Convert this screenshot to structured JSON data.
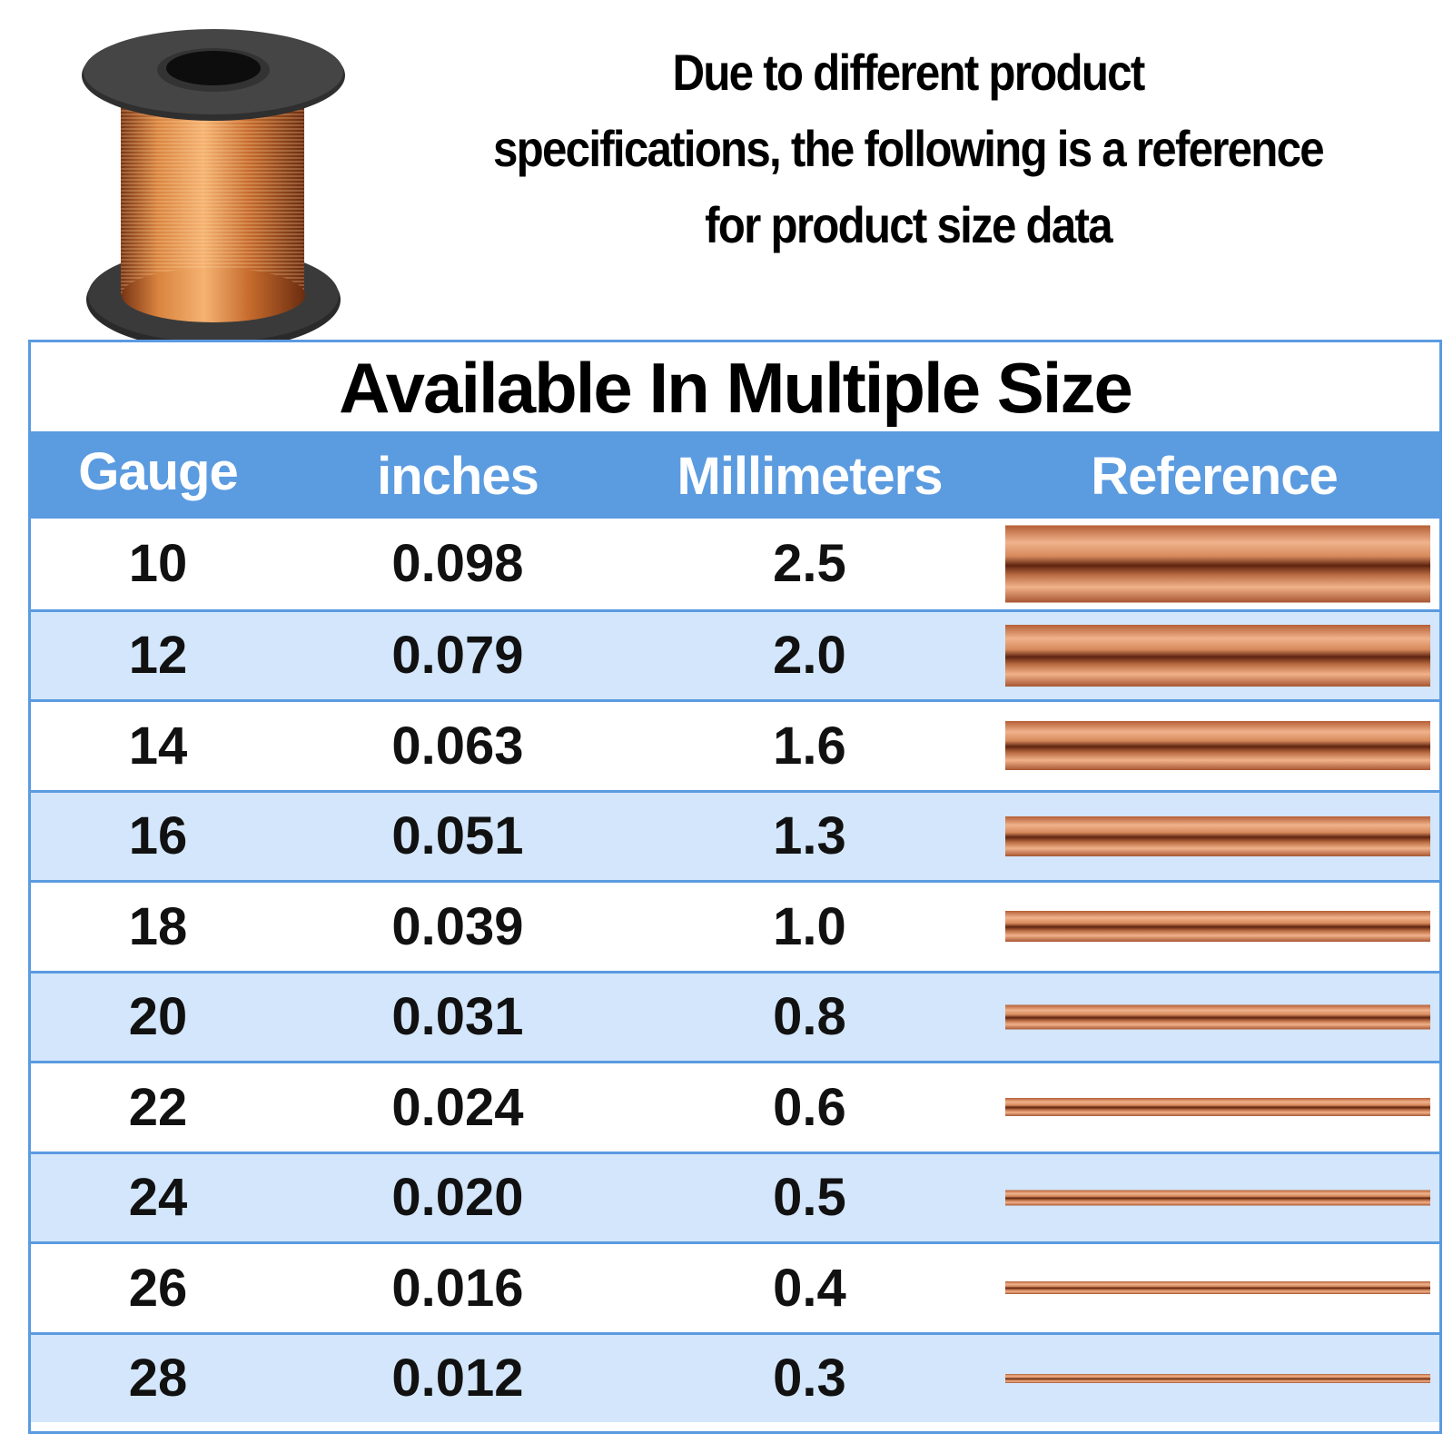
{
  "notice": {
    "line1": "Due to different product",
    "line2": "specifications, the following is a reference",
    "line3": "for product size data"
  },
  "table": {
    "title": "Available In Multiple Size",
    "headers": {
      "gauge": "Gauge",
      "inches": "inches",
      "millimeters": "Millimeters",
      "reference": "Reference"
    },
    "rows": [
      {
        "gauge": "10",
        "inches": "0.098",
        "mm": "2.5"
      },
      {
        "gauge": "12",
        "inches": "0.079",
        "mm": "2.0"
      },
      {
        "gauge": "14",
        "inches": "0.063",
        "mm": "1.6"
      },
      {
        "gauge": "16",
        "inches": "0.051",
        "mm": "1.3"
      },
      {
        "gauge": "18",
        "inches": "0.039",
        "mm": "1.0"
      },
      {
        "gauge": "20",
        "inches": "0.031",
        "mm": "0.8"
      },
      {
        "gauge": "22",
        "inches": "0.024",
        "mm": "0.6"
      },
      {
        "gauge": "24",
        "inches": "0.020",
        "mm": "0.5"
      },
      {
        "gauge": "26",
        "inches": "0.016",
        "mm": "0.4"
      },
      {
        "gauge": "28",
        "inches": "0.012",
        "mm": "0.3"
      }
    ]
  },
  "colors": {
    "header_blue": "#5b9be0",
    "row_alt": "#d3e6fb",
    "copper": "#c87a4a"
  }
}
